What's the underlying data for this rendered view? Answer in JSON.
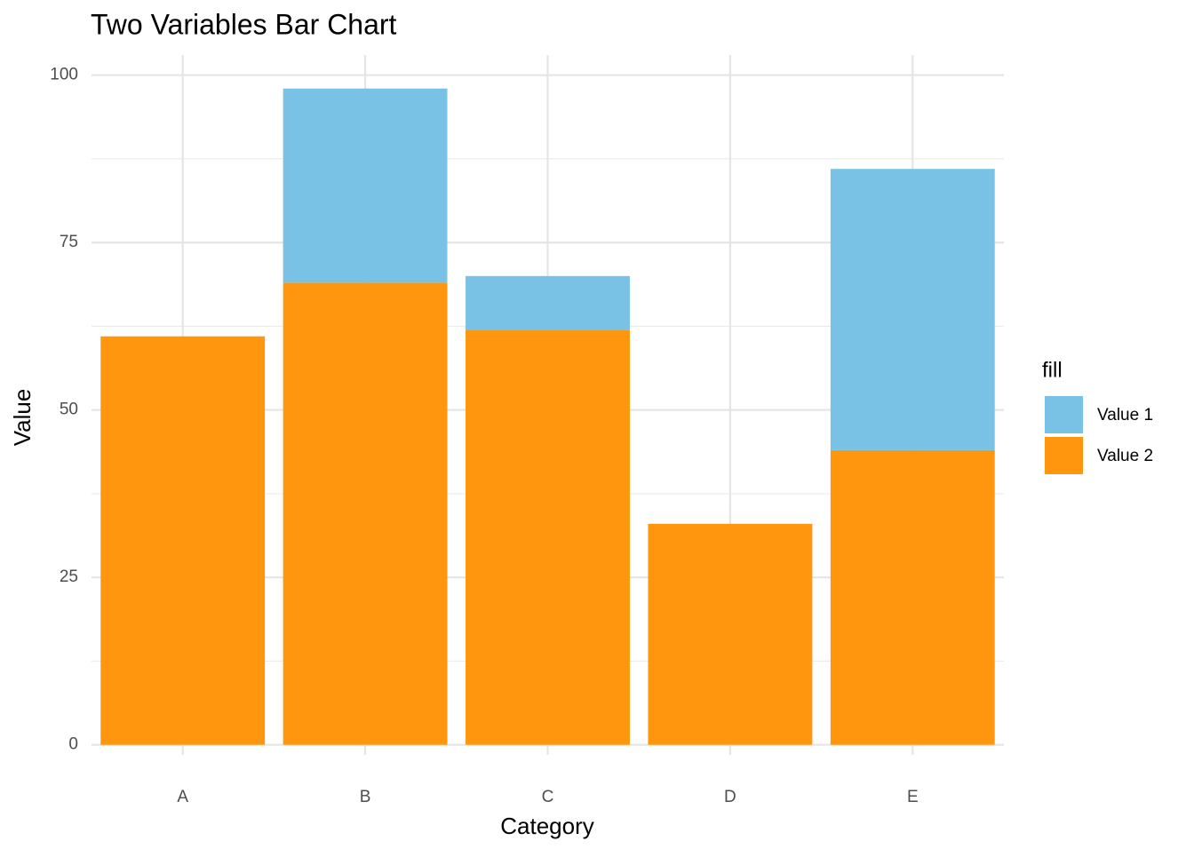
{
  "chart_data": {
    "type": "bar",
    "title": "Two Variables Bar Chart",
    "x_label": "Category",
    "y_label": "Value",
    "categories": [
      "A",
      "B",
      "C",
      "D",
      "E"
    ],
    "series": [
      {
        "name": "Value 2",
        "color": "#ff960d",
        "values": [
          61,
          69,
          62,
          33,
          44
        ]
      },
      {
        "name": "Value 1",
        "color": "#79c2e5",
        "values": [
          0,
          29,
          8,
          0,
          42
        ]
      }
    ],
    "stacked": true,
    "ylim": [
      -1.5,
      103
    ],
    "yticks": [
      0,
      25,
      50,
      75,
      100
    ],
    "grid": true,
    "legend_title": "fill",
    "legend_position": "right",
    "legend_order": [
      1,
      0
    ]
  }
}
